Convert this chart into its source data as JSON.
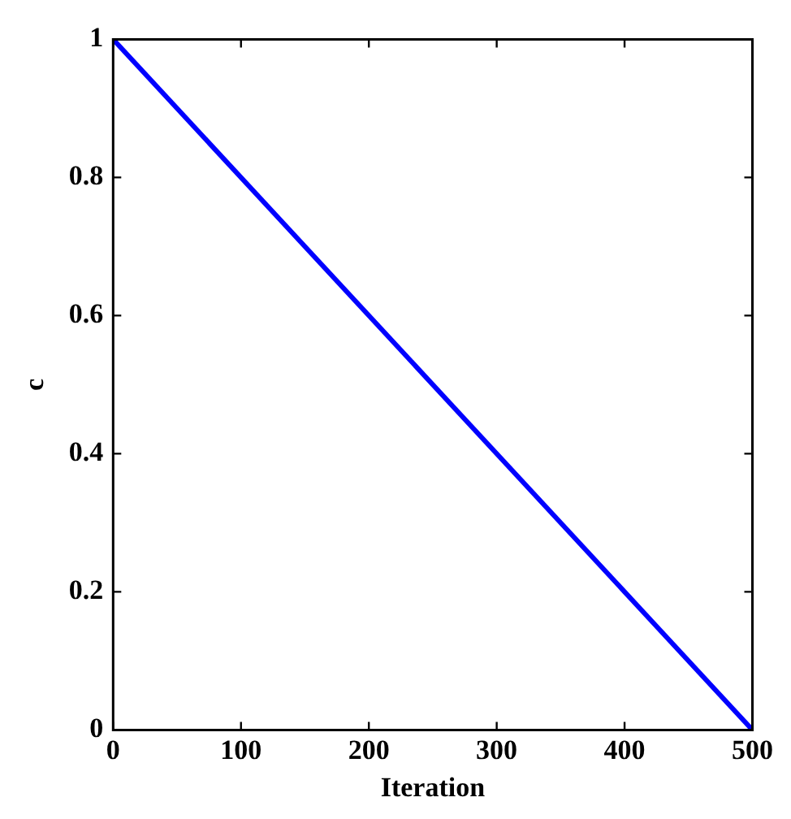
{
  "chart_data": {
    "type": "line",
    "xlabel": "Iteration",
    "ylabel": "c",
    "x": [
      0,
      500
    ],
    "series": [
      {
        "color": "#0000ff",
        "values": [
          1,
          0
        ]
      }
    ],
    "xlim": [
      0,
      500
    ],
    "xticks": [
      0,
      100,
      200,
      300,
      400,
      500
    ],
    "ylim": [
      0,
      1
    ],
    "yticks": [
      0,
      0.2,
      0.4,
      0.6,
      0.8,
      1
    ],
    "grid": false,
    "legend": false,
    "marker": "none",
    "line_style": "solid"
  }
}
